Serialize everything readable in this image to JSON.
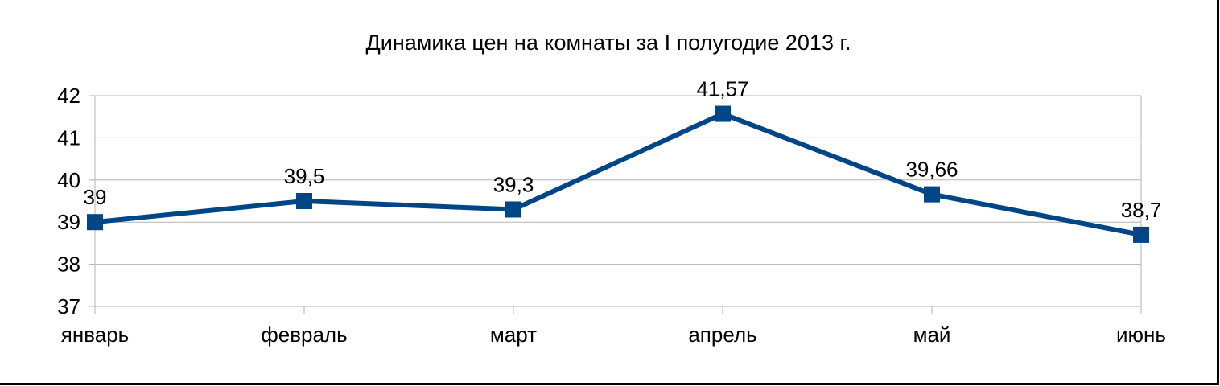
{
  "chart_data": {
    "type": "line",
    "title": "Динамика цен на комнаты за I полугодие 2013 г.",
    "xlabel": "",
    "ylabel": "",
    "categories": [
      "январь",
      "февраль",
      "март",
      "апрель",
      "май",
      "июнь"
    ],
    "series": [
      {
        "values": [
          39,
          39.5,
          39.3,
          41.57,
          39.66,
          38.7
        ],
        "labels": [
          "39",
          "39,5",
          "39,3",
          "41,57",
          "39,66",
          "38,7"
        ],
        "color": "#004586",
        "marker": "square"
      }
    ],
    "ylim": [
      37,
      42
    ],
    "yticks": [
      "37",
      "38",
      "39",
      "40",
      "41",
      "42"
    ],
    "grid": true,
    "legend": "none"
  }
}
